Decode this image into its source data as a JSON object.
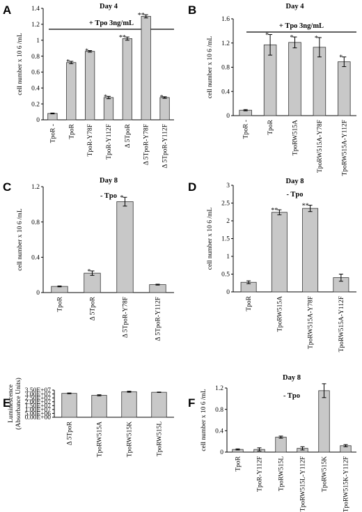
{
  "chart_data": [
    {
      "panel": "A",
      "type": "bar",
      "title": "Day 4",
      "treatment": "+ Tpo 3ng/mL",
      "ylabel": "cell number x 10 6 /mL",
      "ylim": [
        0,
        1.4
      ],
      "yticks": [
        "0",
        "0.2",
        "0.4",
        "0.6",
        "0.8",
        "1",
        "1.2",
        "1.4"
      ],
      "categories": [
        "TpoR -",
        "TpoR",
        "TpoR-Y78F",
        "TpoR-Y112F",
        "Δ 5TpoR",
        "Δ 5TpoR-Y78F",
        "Δ 5TpoR-Y112F"
      ],
      "values": [
        0.08,
        0.72,
        0.86,
        0.28,
        1.02,
        1.3,
        0.28
      ],
      "errors": [
        0.005,
        0.015,
        0.01,
        0.015,
        0.02,
        0.02,
        0.01
      ],
      "markers": [
        "",
        "*",
        "*",
        "*",
        "**",
        "**",
        "*"
      ],
      "bar_color": "#c8c8c8"
    },
    {
      "panel": "B",
      "type": "bar",
      "title": "Day 4",
      "treatment": "+ Tpo 3ng/mL",
      "ylabel": "cell number x 10 6 /mL",
      "ylim": [
        0,
        1.6
      ],
      "yticks": [
        "0",
        "0.4",
        "0.8",
        "1.2",
        "1.6"
      ],
      "categories": [
        "TpoR -",
        "TpoR",
        "TpoRW515A",
        "TpoRW515A-Y78F",
        "TpoRW515A-Y112F"
      ],
      "values": [
        0.09,
        1.17,
        1.21,
        1.13,
        0.89
      ],
      "errors": [
        0.01,
        0.17,
        0.09,
        0.16,
        0.08
      ],
      "markers": [
        "",
        "*",
        "*",
        "*",
        "*"
      ],
      "bar_color": "#c8c8c8"
    },
    {
      "panel": "C",
      "type": "bar",
      "title": "Day 8",
      "treatment": "- Tpo",
      "ylabel": "cell number x 10 6 /mL",
      "ylim": [
        0,
        1.2
      ],
      "yticks": [
        "0",
        "0.4",
        "0.8",
        "1.2"
      ],
      "categories": [
        "TpoR",
        "Δ 5TpoR",
        "Δ 5TpoR-Y78F",
        "Δ 5TpoR-Y112F"
      ],
      "values": [
        0.07,
        0.22,
        1.03,
        0.09
      ],
      "errors": [
        0.005,
        0.025,
        0.05,
        0.005
      ],
      "markers": [
        "",
        "*",
        "*",
        ""
      ],
      "bar_color": "#c8c8c8"
    },
    {
      "panel": "D",
      "type": "bar",
      "title": "Day 8",
      "treatment": "- Tpo",
      "ylabel": "cell number x 10 6 /mL",
      "ylim": [
        0,
        3
      ],
      "yticks": [
        "0",
        "0.5",
        "1",
        "1.5",
        "2",
        "2.5",
        "3"
      ],
      "categories": [
        "TpoR",
        "TpoRW515A",
        "TpoRW515A-Y78F",
        "TpoRW515A-Y112F"
      ],
      "values": [
        0.27,
        2.24,
        2.35,
        0.4
      ],
      "errors": [
        0.04,
        0.07,
        0.09,
        0.1
      ],
      "markers": [
        "",
        "**",
        "**",
        ""
      ],
      "bar_color": "#c8c8c8"
    },
    {
      "panel": "E",
      "type": "bar",
      "title": "",
      "treatment": "",
      "ylabel": "Luminescence (Absorbance Units)",
      "ylabel_lines": [
        "Luminescence",
        "(Absorbance Units)"
      ],
      "ylim": [
        0,
        35000000
      ],
      "yticks": [
        "0.00E+00",
        "5.00E+06",
        "1.00E+07",
        "1.50E+07",
        "2.00E+07",
        "2.50E+07",
        "3.00E+07",
        "3.50E+07"
      ],
      "categories": [
        "Δ 5TpoR",
        "TpoRW515A",
        "TpoRW515K",
        "TpoRW515L"
      ],
      "values": [
        30800000,
        28300000,
        32900000,
        32200000
      ],
      "errors": [
        500000,
        700000,
        700000,
        300000
      ],
      "markers": [
        "",
        "",
        "",
        ""
      ],
      "bar_color": "#c8c8c8"
    },
    {
      "panel": "F",
      "type": "bar",
      "title": "Day 8",
      "treatment": "- Tpo",
      "ylabel": "cell number x 10 6 /mL",
      "ylim": [
        0,
        1.2
      ],
      "yticks": [
        "0",
        "0.4",
        "0.8",
        "1.2"
      ],
      "categories": [
        "TpoR",
        "TpoR-Y112F",
        "TpoRW515L",
        "TpoRW515L-Y112F",
        "TpoRW515K",
        "TpoRW515K-Y112F"
      ],
      "values": [
        0.05,
        0.05,
        0.28,
        0.07,
        1.15,
        0.12
      ],
      "errors": [
        0.01,
        0.03,
        0.02,
        0.03,
        0.13,
        0.02
      ],
      "markers": [
        "",
        "",
        "",
        "",
        "",
        ""
      ],
      "bar_color": "#c8c8c8"
    }
  ]
}
